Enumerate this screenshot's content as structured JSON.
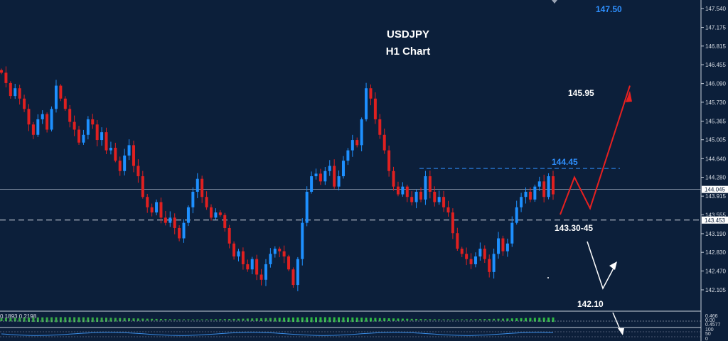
{
  "chart_data": {
    "type": "candlestick",
    "title": "USDJPY",
    "subtitle": "H1 Chart",
    "y_ticks": [
      "147.540",
      "147.175",
      "146.815",
      "146.455",
      "146.090",
      "145.730",
      "145.365",
      "145.005",
      "144.640",
      "144.280",
      "143.915",
      "143.555",
      "143.190",
      "142.830",
      "142.470",
      "142.105"
    ],
    "ylim": [
      141.95,
      147.7
    ],
    "current_price": "144.045",
    "price_badge_2": "143.453",
    "colors": {
      "background": "#0c1f3a",
      "bull": "#1e90ff",
      "bear": "#e02020",
      "level_label": "#2f90ff",
      "path_up": "#e82020",
      "path_down": "#ffffff"
    },
    "levels": [
      {
        "label": "147.50",
        "price": 147.5,
        "style": "label-blue"
      },
      {
        "label": "145.95",
        "price": 145.95,
        "style": "label-white"
      },
      {
        "label": "144.45",
        "price": 144.45,
        "style": "dashed-blue"
      },
      {
        "label": "143.30-45",
        "price": 143.453,
        "style": "dashed-white"
      },
      {
        "label": "142.10",
        "price": 142.1,
        "style": "label-white"
      }
    ],
    "path_points": [
      [
        143.56,
        143.25,
        144.28,
        143.68,
        144.45,
        146.05
      ],
      [
        142.89,
        142.52,
        142.92
      ]
    ],
    "closes": [
      146.3,
      146.1,
      145.85,
      146.0,
      145.8,
      145.6,
      145.3,
      145.1,
      145.4,
      145.5,
      145.2,
      145.6,
      146.05,
      145.8,
      145.6,
      145.35,
      145.2,
      144.95,
      145.1,
      145.4,
      145.3,
      145.0,
      145.15,
      144.8,
      144.85,
      144.6,
      144.4,
      144.7,
      144.9,
      144.5,
      144.3,
      143.9,
      143.7,
      143.6,
      143.8,
      143.5,
      143.4,
      143.5,
      143.3,
      143.1,
      143.4,
      143.7,
      144.0,
      144.25,
      143.9,
      143.7,
      143.5,
      143.6,
      143.55,
      143.3,
      143.0,
      142.75,
      142.85,
      142.6,
      142.5,
      142.7,
      142.4,
      142.3,
      142.6,
      142.8,
      142.9,
      142.85,
      142.75,
      142.5,
      142.2,
      142.7,
      143.4,
      144.0,
      144.3,
      144.35,
      144.2,
      144.4,
      144.5,
      144.1,
      144.3,
      144.6,
      144.8,
      145.0,
      144.9,
      145.4,
      146.0,
      145.8,
      145.4,
      145.1,
      144.8,
      144.4,
      144.1,
      143.95,
      144.1,
      143.9,
      143.8,
      144.0,
      143.85,
      144.3,
      144.0,
      143.8,
      143.9,
      143.7,
      143.6,
      143.2,
      142.9,
      142.8,
      142.7,
      142.6,
      142.75,
      142.9,
      142.7,
      142.45,
      142.8,
      143.1,
      142.85,
      143.0,
      143.4,
      143.7,
      143.9,
      144.0,
      143.85,
      144.1,
      144.2,
      143.9,
      144.3,
      143.95
    ],
    "indicator_1": {
      "values_text": "0.1893 0.2198",
      "ticks": [
        "0.466",
        "0.00",
        "0.4577"
      ]
    },
    "indicator_2": {
      "ticks": [
        "100",
        "50",
        "0"
      ]
    }
  }
}
